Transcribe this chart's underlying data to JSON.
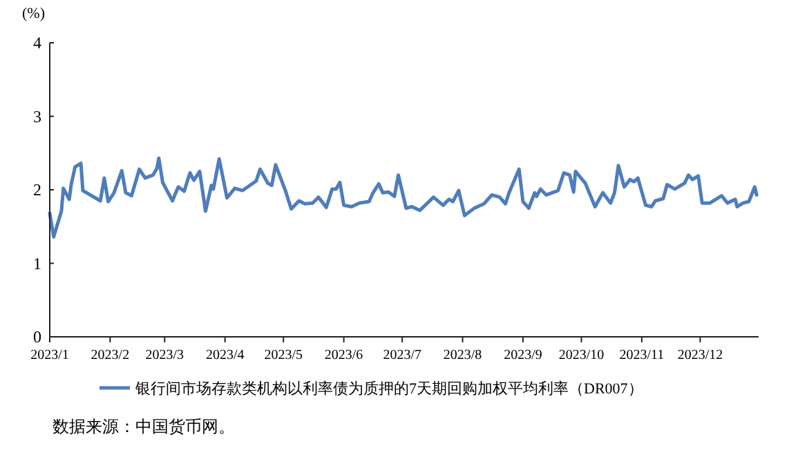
{
  "chart_data": {
    "type": "line",
    "ylabel": "(%)",
    "xlim": [
      "2023-01-01",
      "2023-12-31"
    ],
    "xticks": [
      {
        "value": "2023-01-01",
        "label": "2023/1"
      },
      {
        "value": "2023-02-01",
        "label": "2023/2"
      },
      {
        "value": "2023-03-01",
        "label": "2023/3"
      },
      {
        "value": "2023-04-01",
        "label": "2023/4"
      },
      {
        "value": "2023-05-01",
        "label": "2023/5"
      },
      {
        "value": "2023-06-01",
        "label": "2023/6"
      },
      {
        "value": "2023-07-01",
        "label": "2023/7"
      },
      {
        "value": "2023-08-01",
        "label": "2023/8"
      },
      {
        "value": "2023-09-01",
        "label": "2023/9"
      },
      {
        "value": "2023-10-01",
        "label": "2023/10"
      },
      {
        "value": "2023-11-01",
        "label": "2023/11"
      },
      {
        "value": "2023-12-01",
        "label": "2023/12"
      }
    ],
    "ylim": [
      0,
      4
    ],
    "yticks": [
      0,
      1,
      2,
      3,
      4
    ],
    "grid": false,
    "legend": "bottom",
    "marker": "none",
    "line_style": "solid",
    "x": [
      "2023-01-01",
      "2023-01-03",
      "2023-01-07",
      "2023-01-08",
      "2023-01-11",
      "2023-01-12",
      "2023-01-14",
      "2023-01-17",
      "2023-01-18",
      "2023-01-27",
      "2023-01-29",
      "2023-01-31",
      "2023-02-03",
      "2023-02-07",
      "2023-02-09",
      "2023-02-12",
      "2023-02-16",
      "2023-02-19",
      "2023-02-23",
      "2023-02-25",
      "2023-02-26",
      "2023-02-28",
      "2023-03-05",
      "2023-03-08",
      "2023-03-11",
      "2023-03-14",
      "2023-03-16",
      "2023-03-19",
      "2023-03-22",
      "2023-03-25",
      "2023-03-26",
      "2023-03-29",
      "2023-04-02",
      "2023-04-06",
      "2023-04-10",
      "2023-04-17",
      "2023-04-19",
      "2023-04-23",
      "2023-04-25",
      "2023-04-27",
      "2023-05-02",
      "2023-05-05",
      "2023-05-09",
      "2023-05-12",
      "2023-05-16",
      "2023-05-19",
      "2023-05-23",
      "2023-05-26",
      "2023-05-28",
      "2023-05-30",
      "2023-06-01",
      "2023-06-05",
      "2023-06-09",
      "2023-06-14",
      "2023-06-16",
      "2023-06-19",
      "2023-06-21",
      "2023-06-24",
      "2023-06-27",
      "2023-06-29",
      "2023-07-03",
      "2023-07-06",
      "2023-07-10",
      "2023-07-14",
      "2023-07-17",
      "2023-07-22",
      "2023-07-25",
      "2023-07-27",
      "2023-07-30",
      "2023-08-02",
      "2023-08-07",
      "2023-08-12",
      "2023-08-16",
      "2023-08-20",
      "2023-08-23",
      "2023-08-25",
      "2023-08-30",
      "2023-09-01",
      "2023-09-04",
      "2023-09-07",
      "2023-09-08",
      "2023-09-10",
      "2023-09-13",
      "2023-09-19",
      "2023-09-22",
      "2023-09-25",
      "2023-09-27",
      "2023-09-28",
      "2023-10-03",
      "2023-10-08",
      "2023-10-12",
      "2023-10-16",
      "2023-10-18",
      "2023-10-20",
      "2023-10-23",
      "2023-10-26",
      "2023-10-28",
      "2023-10-30",
      "2023-11-03",
      "2023-11-06",
      "2023-11-08",
      "2023-11-12",
      "2023-11-14",
      "2023-11-18",
      "2023-11-23",
      "2023-11-25",
      "2023-11-27",
      "2023-11-30",
      "2023-12-02",
      "2023-12-06",
      "2023-12-12",
      "2023-12-15",
      "2023-12-19",
      "2023-12-20",
      "2023-12-23",
      "2023-12-26",
      "2023-12-29",
      "2023-12-30"
    ],
    "series": [
      {
        "name": "银行间市场存款类机构以利率债为质押的7天期回购加权平均利率（DR007）",
        "color": "#4f7dbb",
        "values": [
          1.68,
          1.36,
          1.71,
          2.02,
          1.87,
          2.07,
          2.31,
          2.36,
          1.99,
          1.85,
          2.16,
          1.84,
          1.96,
          2.26,
          1.96,
          1.92,
          2.28,
          2.16,
          2.2,
          2.29,
          2.43,
          2.1,
          1.85,
          2.04,
          1.98,
          2.23,
          2.13,
          2.25,
          1.71,
          2.06,
          2.01,
          2.42,
          1.89,
          2.02,
          1.99,
          2.12,
          2.28,
          2.09,
          2.06,
          2.34,
          1.99,
          1.74,
          1.85,
          1.81,
          1.82,
          1.9,
          1.76,
          2.01,
          2.01,
          2.1,
          1.79,
          1.77,
          1.82,
          1.84,
          1.96,
          2.08,
          1.96,
          1.97,
          1.91,
          2.2,
          1.75,
          1.77,
          1.72,
          1.82,
          1.9,
          1.79,
          1.87,
          1.84,
          1.99,
          1.65,
          1.75,
          1.81,
          1.93,
          1.9,
          1.81,
          1.97,
          2.28,
          1.84,
          1.75,
          1.96,
          1.91,
          2.01,
          1.93,
          1.99,
          2.23,
          2.2,
          1.97,
          2.25,
          2.09,
          1.77,
          1.96,
          1.82,
          1.96,
          2.33,
          2.04,
          2.14,
          2.11,
          2.16,
          1.79,
          1.77,
          1.85,
          1.88,
          2.07,
          2.01,
          2.09,
          2.2,
          2.14,
          2.19,
          1.82,
          1.82,
          1.92,
          1.82,
          1.87,
          1.77,
          1.82,
          1.84,
          2.04,
          1.93
        ]
      }
    ],
    "annotations": [
      "数据来源：中国货币网。"
    ]
  }
}
